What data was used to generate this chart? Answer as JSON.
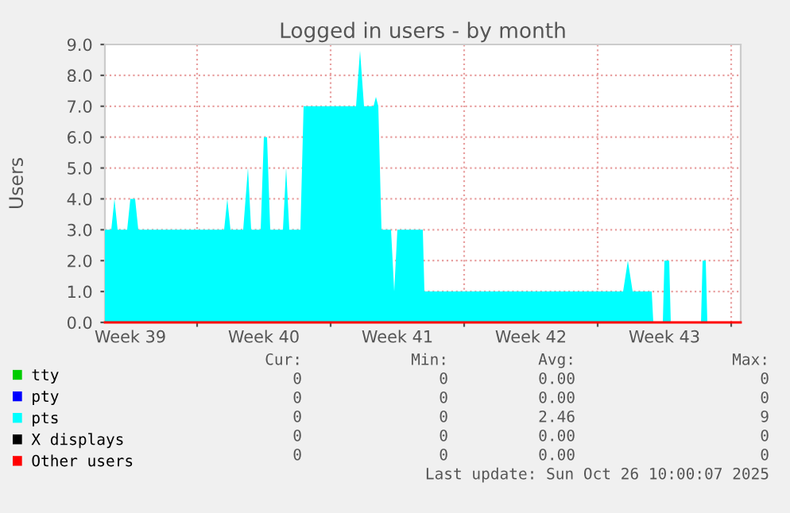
{
  "chart_data": {
    "type": "area",
    "title": "Logged in users - by month",
    "ylabel": "Users",
    "xlim": [
      "2025-09-24T04:00",
      "2025-10-27T12:00"
    ],
    "xticks": [
      {
        "value": "2025-09-25T12:00",
        "label": "Week 39"
      },
      {
        "value": "2025-09-29T00:00",
        "label": null
      },
      {
        "value": "2025-10-02T12:00",
        "label": "Week 40"
      },
      {
        "value": "2025-10-06T00:00",
        "label": null
      },
      {
        "value": "2025-10-09T12:00",
        "label": "Week 41"
      },
      {
        "value": "2025-10-13T00:00",
        "label": null
      },
      {
        "value": "2025-10-16T12:00",
        "label": "Week 42"
      },
      {
        "value": "2025-10-20T00:00",
        "label": null
      },
      {
        "value": "2025-10-23T12:00",
        "label": "Week 43"
      },
      {
        "value": "2025-10-27T00:00",
        "label": null
      }
    ],
    "ylim": [
      0,
      9
    ],
    "yticks": [
      {
        "value": 0,
        "label": "0.0"
      },
      {
        "value": 1,
        "label": "1.0"
      },
      {
        "value": 2,
        "label": "2.0"
      },
      {
        "value": 3,
        "label": "3.0"
      },
      {
        "value": 4,
        "label": "4.0"
      },
      {
        "value": 5,
        "label": "5.0"
      },
      {
        "value": 6,
        "label": "6.0"
      },
      {
        "value": 7,
        "label": "7.0"
      },
      {
        "value": 8,
        "label": "8.0"
      },
      {
        "value": 9,
        "label": "9.0"
      }
    ],
    "grid": true,
    "legend": "bottom left",
    "series": [
      {
        "name": "tty",
        "type": "line",
        "color": "#00cc00"
      },
      {
        "name": "pty",
        "type": "line",
        "color": "#0000ff"
      },
      {
        "name": "pts",
        "color": "#00ffff",
        "x": [
          "2025-09-24T04:00",
          "2025-09-24T12:00",
          "2025-09-24T16:00",
          "2025-09-24T20:00",
          "2025-09-25T08:00",
          "2025-09-25T12:00",
          "2025-09-25T18:00",
          "2025-09-25T22:00",
          "2025-09-30T10:00",
          "2025-09-30T14:00",
          "2025-09-30T18:00",
          "2025-10-01T10:00",
          "2025-10-01T16:00",
          "2025-10-01T20:00",
          "2025-10-02T08:00",
          "2025-10-02T12:00",
          "2025-10-02T16:00",
          "2025-10-02T20:00",
          "2025-10-03T12:00",
          "2025-10-03T16:00",
          "2025-10-03T20:00",
          "2025-10-04T10:00",
          "2025-10-04T14:00",
          "2025-10-07T08:00",
          "2025-10-07T13:00",
          "2025-10-07T18:00",
          "2025-10-08T06:00",
          "2025-10-08T09:00",
          "2025-10-08T12:00",
          "2025-10-08T16:00",
          "2025-10-09T04:00",
          "2025-10-09T08:00",
          "2025-10-09T12:00",
          "2025-10-10T20:00",
          "2025-10-10T22:00",
          "2025-10-21T08:00",
          "2025-10-21T14:00",
          "2025-10-21T20:00",
          "2025-10-22T20:00",
          "2025-10-22T22:00",
          "2025-10-23T10:00",
          "2025-10-23T12:00",
          "2025-10-23T18:00",
          "2025-10-23T20:00",
          "2025-10-25T10:00",
          "2025-10-25T12:00",
          "2025-10-25T16:00",
          "2025-10-25T18:00",
          "2025-10-27T12:00"
        ],
        "values": [
          3,
          3,
          4,
          3,
          3,
          4,
          4,
          3,
          3,
          4,
          3,
          3,
          5,
          3,
          3,
          6,
          6,
          3,
          3,
          5,
          3,
          3,
          7,
          7,
          8.8,
          7,
          7,
          7.3,
          7,
          3,
          3,
          1,
          3,
          3,
          1,
          1,
          2,
          1,
          1,
          0,
          0,
          2,
          2,
          0,
          0,
          2,
          2,
          0,
          0
        ]
      },
      {
        "name": "X displays",
        "type": "line",
        "color": "#000000"
      },
      {
        "name": "Other users",
        "type": "line",
        "color": "#ff0000",
        "x": [
          "2025-09-24T04:00",
          "2025-10-27T12:00"
        ],
        "values": [
          0,
          0
        ]
      }
    ],
    "annotations": [
      "Cur:",
      "Min:",
      "Avg:",
      "Max:",
      "0",
      "0",
      "0.00",
      "0",
      "0",
      "0",
      "0.00",
      "0",
      "0",
      "0",
      "2.46",
      "9",
      "0",
      "0",
      "0.00",
      "0",
      "0",
      "0",
      "0.00",
      "0",
      "Last update: Sun Oct 26 10:00:07 2025"
    ]
  }
}
